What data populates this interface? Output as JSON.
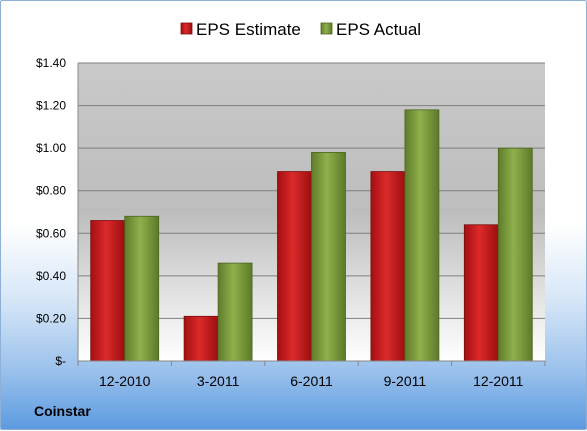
{
  "company": "Coinstar",
  "chart_data": {
    "type": "bar",
    "categories": [
      "12-2010",
      "3-2011",
      "6-2011",
      "9-2011",
      "12-2011"
    ],
    "series": [
      {
        "name": "EPS Estimate",
        "values": [
          0.66,
          0.21,
          0.89,
          0.89,
          0.64
        ],
        "color": "#c0171b"
      },
      {
        "name": "EPS Actual",
        "values": [
          0.68,
          0.46,
          0.98,
          1.18,
          1.0
        ],
        "color": "#7a9a3a"
      }
    ],
    "yticks": [
      {
        "value": 0,
        "label": "$-"
      },
      {
        "value": 0.2,
        "label": "$0.20"
      },
      {
        "value": 0.4,
        "label": "$0.40"
      },
      {
        "value": 0.6,
        "label": "$0.60"
      },
      {
        "value": 0.8,
        "label": "$0.80"
      },
      {
        "value": 1.0,
        "label": "$1.00"
      },
      {
        "value": 1.2,
        "label": "$1.20"
      },
      {
        "value": 1.4,
        "label": "$1.40"
      }
    ],
    "ylim": [
      0,
      1.4
    ],
    "grid": true,
    "legend_position": "top"
  }
}
